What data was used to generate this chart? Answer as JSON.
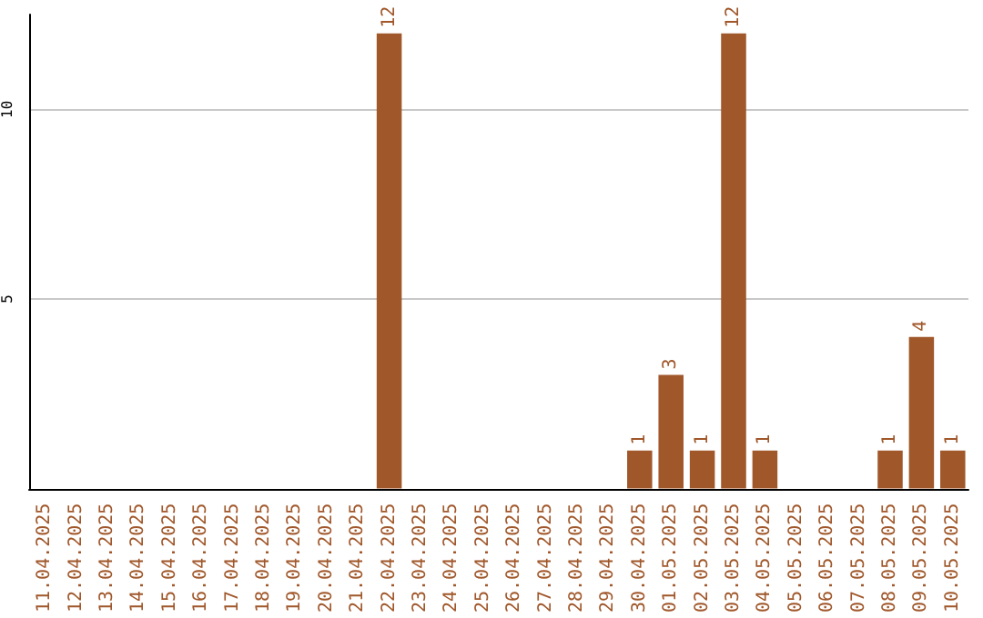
{
  "chart_data": {
    "type": "bar",
    "categories": [
      "11.04.2025",
      "12.04.2025",
      "13.04.2025",
      "14.04.2025",
      "15.04.2025",
      "16.04.2025",
      "17.04.2025",
      "18.04.2025",
      "19.04.2025",
      "20.04.2025",
      "21.04.2025",
      "22.04.2025",
      "23.04.2025",
      "24.04.2025",
      "25.04.2025",
      "26.04.2025",
      "27.04.2025",
      "28.04.2025",
      "29.04.2025",
      "30.04.2025",
      "01.05.2025",
      "02.05.2025",
      "03.05.2025",
      "04.05.2025",
      "05.05.2025",
      "06.05.2025",
      "07.05.2025",
      "08.05.2025",
      "09.05.2025",
      "10.05.2025"
    ],
    "values": [
      0,
      0,
      0,
      0,
      0,
      0,
      0,
      0,
      0,
      0,
      0,
      12,
      0,
      0,
      0,
      0,
      0,
      0,
      0,
      1,
      3,
      1,
      12,
      1,
      0,
      0,
      0,
      1,
      4,
      1
    ],
    "value_labels": [
      null,
      null,
      null,
      null,
      null,
      null,
      null,
      null,
      null,
      null,
      null,
      "12",
      null,
      null,
      null,
      null,
      null,
      null,
      null,
      "1",
      "3",
      "1",
      "12",
      "1",
      null,
      null,
      null,
      "1",
      "4",
      "1"
    ],
    "color": "#a0572a",
    "ylim": [
      0,
      12.5
    ],
    "yticks": [
      5,
      10
    ],
    "grid": "y"
  }
}
